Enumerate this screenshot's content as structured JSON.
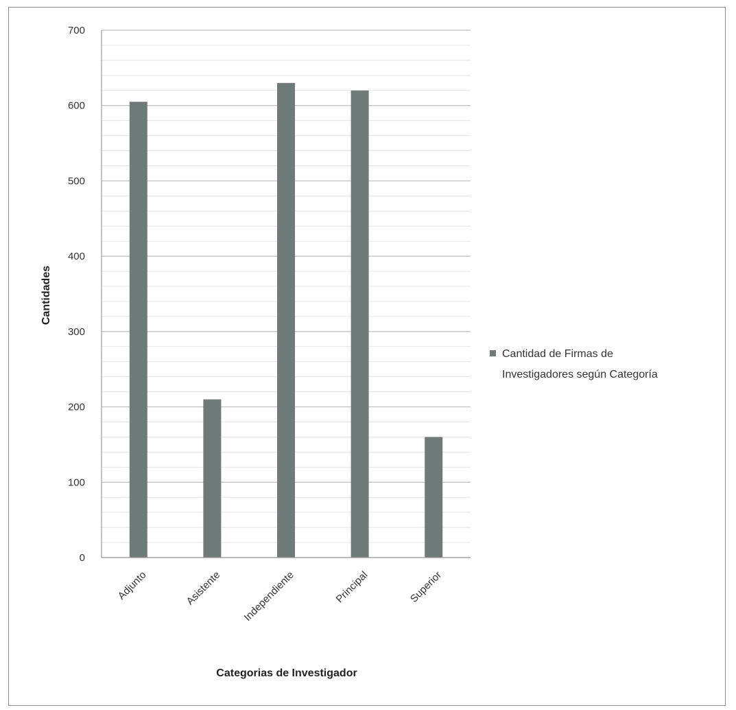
{
  "chart_data": {
    "type": "bar",
    "categories": [
      "Adjunto",
      "Asistente",
      "Independiente",
      "Principal",
      "Superior"
    ],
    "series": [
      {
        "name": "Cantidad de Firmas de Investigadores según Categoría",
        "values": [
          605,
          210,
          630,
          620,
          160
        ]
      }
    ],
    "xlabel": "Categorias de Investigador",
    "ylabel": "Cantidades",
    "ylim": [
      0,
      700
    ],
    "yticks": [
      0,
      100,
      200,
      300,
      400,
      500,
      600,
      700
    ],
    "grid": true,
    "legend_position": "right",
    "legend_lines": [
      "Cantidad de Firmas de",
      "Investigadores según Categoría"
    ],
    "colors": {
      "bar": "#6f7b79",
      "grid": "#cfcfcf",
      "axis": "#9a9a9a"
    }
  }
}
